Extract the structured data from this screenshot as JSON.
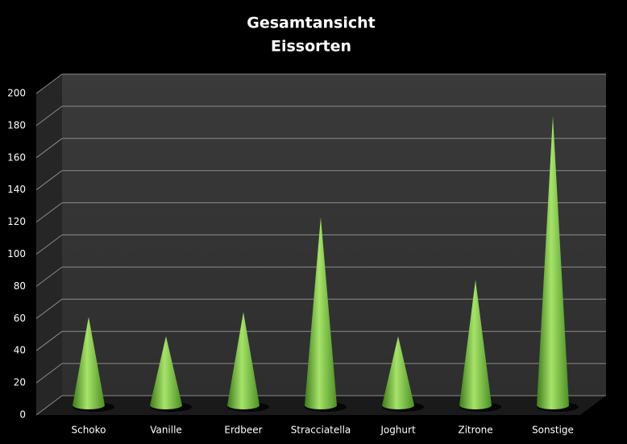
{
  "chart_data": {
    "type": "cone",
    "title": [
      "Gesamtansicht",
      "Eissorten"
    ],
    "categories": [
      "Schoko",
      "Vanille",
      "Erdbeer",
      "Stracciatella",
      "Joghurt",
      "Zitrone",
      "Sonstige"
    ],
    "values": [
      55,
      43,
      58,
      117,
      43,
      78,
      180
    ],
    "color": "#7cc242",
    "ylim": [
      0,
      200
    ],
    "yticks": [
      0,
      20,
      40,
      60,
      80,
      100,
      120,
      140,
      160,
      180,
      200
    ],
    "grid": true
  }
}
